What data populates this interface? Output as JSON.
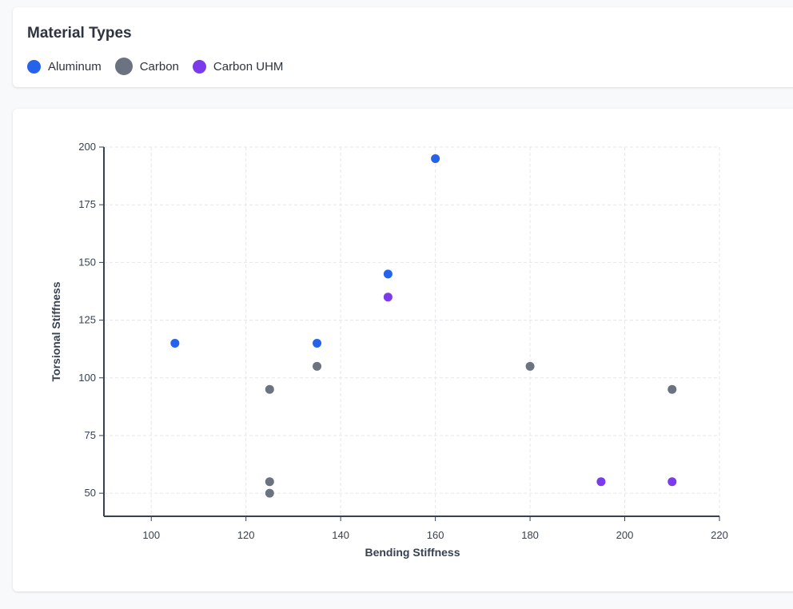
{
  "legend": {
    "title": "Material Types",
    "items": [
      {
        "label": "Aluminum",
        "color": "#2563eb"
      },
      {
        "label": "Carbon",
        "color": "#6b7280"
      },
      {
        "label": "Carbon UHM",
        "color": "#7c3aed"
      }
    ]
  },
  "chart_data": {
    "type": "scatter",
    "xlabel": "Bending Stiffness",
    "ylabel": "Torsional Stiffness",
    "xlim": [
      90,
      220
    ],
    "ylim": [
      40,
      200
    ],
    "xticks": [
      100,
      120,
      140,
      160,
      180,
      200,
      220
    ],
    "yticks": [
      50,
      75,
      100,
      125,
      150,
      175,
      200
    ],
    "grid": true,
    "series": [
      {
        "name": "Aluminum",
        "color": "#2563eb",
        "points": [
          {
            "x": 105,
            "y": 115
          },
          {
            "x": 135,
            "y": 115
          },
          {
            "x": 150,
            "y": 145
          },
          {
            "x": 160,
            "y": 195
          }
        ]
      },
      {
        "name": "Carbon",
        "color": "#6b7280",
        "points": [
          {
            "x": 125,
            "y": 95
          },
          {
            "x": 125,
            "y": 55
          },
          {
            "x": 125,
            "y": 50
          },
          {
            "x": 135,
            "y": 105
          },
          {
            "x": 180,
            "y": 105
          },
          {
            "x": 210,
            "y": 95
          }
        ]
      },
      {
        "name": "Carbon UHM",
        "color": "#7c3aed",
        "points": [
          {
            "x": 150,
            "y": 135
          },
          {
            "x": 195,
            "y": 55
          },
          {
            "x": 210,
            "y": 55
          }
        ]
      }
    ]
  }
}
